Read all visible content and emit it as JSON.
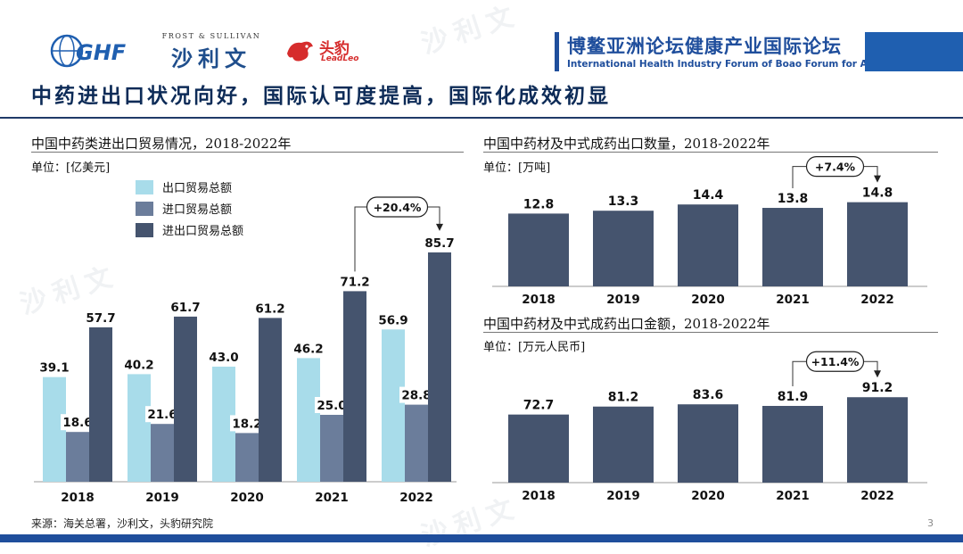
{
  "header": {
    "logo_ghf": "GHF",
    "logo_fs_top": "FROST & SULLIVAN",
    "logo_fs_cn": "沙利文",
    "logo_ll_cn": "头豹",
    "logo_ll_en": "LeadLeo",
    "forum_cn": "博鳌亚洲论坛健康产业国际论坛",
    "forum_en": "International Health Industry Forum of Boao Forum for Asia"
  },
  "page_title": "中药进出口状况向好，国际认可度提高，国际化成效初显",
  "watermark": "沙利文",
  "colors": {
    "export": "#a8dcea",
    "import": "#6b7d9b",
    "total": "#45546e",
    "bar_dark": "#45546e",
    "title": "#0d2b57",
    "accent": "#1f4e9c"
  },
  "chart_data": [
    {
      "type": "bar",
      "title": "中国中药类进出口贸易情况，2018-2022年",
      "unit": "单位：[亿美元]",
      "categories": [
        "2018",
        "2019",
        "2020",
        "2021",
        "2022"
      ],
      "series": [
        {
          "name": "出口贸易总额",
          "values": [
            39.1,
            40.2,
            43.0,
            46.2,
            56.9
          ],
          "labels": [
            "39.1",
            "40.2",
            "43.0",
            "46.2",
            "56.9"
          ]
        },
        {
          "name": "进口贸易总额",
          "values": [
            18.6,
            21.6,
            18.2,
            25.0,
            28.8
          ],
          "labels": [
            "18.6",
            "21.6",
            "18.2",
            "25.0",
            "28.8"
          ]
        },
        {
          "name": "进出口贸易总额",
          "values": [
            57.7,
            61.7,
            61.2,
            71.2,
            85.7
          ],
          "labels": [
            "57.7",
            "61.7",
            "61.2",
            "71.2",
            "85.7"
          ]
        }
      ],
      "annotation": {
        "text": "+20.4%",
        "from": "2021",
        "to": "2022"
      },
      "ylim": [
        0,
        90
      ]
    },
    {
      "type": "bar",
      "title": "中国中药材及中式成药出口数量，2018-2022年",
      "unit": "单位：[万吨]",
      "categories": [
        "2018",
        "2019",
        "2020",
        "2021",
        "2022"
      ],
      "values": [
        12.8,
        13.3,
        14.4,
        13.8,
        14.8
      ],
      "labels": [
        "12.8",
        "13.3",
        "14.4",
        "13.8",
        "14.8"
      ],
      "annotation": {
        "text": "+7.4%",
        "from": "2021",
        "to": "2022"
      },
      "ylim": [
        0,
        16
      ]
    },
    {
      "type": "bar",
      "title": "中国中药材及中式成药出口金额，2018-2022年",
      "unit": "单位：[万元人民币]",
      "categories": [
        "2018",
        "2019",
        "2020",
        "2021",
        "2022"
      ],
      "values": [
        72.7,
        81.2,
        83.6,
        81.9,
        91.2
      ],
      "labels": [
        "72.7",
        "81.2",
        "83.6",
        "81.9",
        "91.2"
      ],
      "annotation": {
        "text": "+11.4%",
        "from": "2021",
        "to": "2022"
      },
      "ylim": [
        0,
        100
      ]
    }
  ],
  "footer": {
    "source": "来源：海关总署，沙利文，头豹研究院",
    "page_number": "3"
  }
}
